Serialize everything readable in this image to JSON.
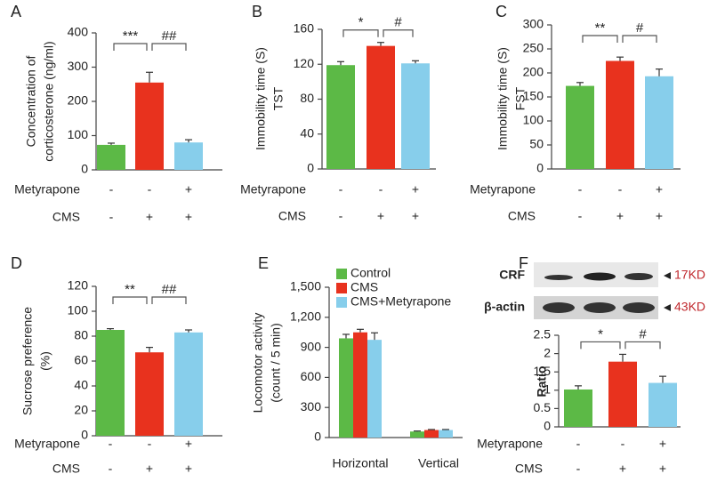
{
  "chart_data": [
    {
      "type": "bar",
      "panel": "A",
      "ylabel": [
        "Concentration of",
        "corticosterone (ng/ml)"
      ],
      "values": [
        73,
        255,
        80
      ],
      "errors": [
        5,
        30,
        8
      ],
      "colors": [
        "#5cb946",
        "#e8321e",
        "#87ceeb"
      ],
      "ylim": [
        0,
        400
      ],
      "yticks": [
        0,
        100,
        200,
        300,
        400
      ],
      "significance": [
        "***",
        "##"
      ],
      "treatments": [
        {
          "name": "Metyrapone",
          "signs": [
            "-",
            "-",
            "+"
          ]
        },
        {
          "name": "CMS",
          "signs": [
            "-",
            "+",
            "+"
          ]
        }
      ]
    },
    {
      "type": "bar",
      "panel": "B",
      "ylabel": [
        "Immobility time (S)",
        "TST"
      ],
      "values": [
        119,
        141,
        121
      ],
      "errors": [
        4,
        4,
        3
      ],
      "colors": [
        "#5cb946",
        "#e8321e",
        "#87ceeb"
      ],
      "ylim": [
        0,
        160
      ],
      "yticks": [
        0,
        40,
        80,
        120,
        160
      ],
      "significance": [
        "*",
        "#"
      ],
      "treatments": [
        {
          "name": "Metyrapone",
          "signs": [
            "-",
            "-",
            "+"
          ]
        },
        {
          "name": "CMS",
          "signs": [
            "-",
            "+",
            "+"
          ]
        }
      ]
    },
    {
      "type": "bar",
      "panel": "C",
      "ylabel": [
        "Immobility time (S)",
        "FST"
      ],
      "values": [
        173,
        225,
        193
      ],
      "errors": [
        7,
        8,
        15
      ],
      "colors": [
        "#5cb946",
        "#e8321e",
        "#87ceeb"
      ],
      "ylim": [
        0,
        300
      ],
      "yticks": [
        0,
        50,
        100,
        150,
        200,
        250,
        300
      ],
      "significance": [
        "**",
        "#"
      ],
      "treatments": [
        {
          "name": "Metyrapone",
          "signs": [
            "-",
            "-",
            "+"
          ]
        },
        {
          "name": "CMS",
          "signs": [
            "-",
            "+",
            "+"
          ]
        }
      ]
    },
    {
      "type": "bar",
      "panel": "D",
      "ylabel": [
        "Sucrose preference",
        "(%)"
      ],
      "values": [
        85,
        67,
        83
      ],
      "errors": [
        1,
        4,
        2
      ],
      "colors": [
        "#5cb946",
        "#e8321e",
        "#87ceeb"
      ],
      "ylim": [
        0,
        120
      ],
      "yticks": [
        0,
        20,
        40,
        60,
        80,
        100,
        120
      ],
      "significance": [
        "**",
        "##"
      ],
      "treatments": [
        {
          "name": "Metyrapone",
          "signs": [
            "-",
            "-",
            "+"
          ]
        },
        {
          "name": "CMS",
          "signs": [
            "-",
            "+",
            "+"
          ]
        }
      ]
    },
    {
      "type": "grouped_bar",
      "panel": "E",
      "ylabel": [
        "Locomotor activity",
        "(count / 5 min)"
      ],
      "categories": [
        "Horizontal",
        "Vertical"
      ],
      "series": [
        {
          "name": "Control",
          "color": "#5cb946",
          "values": [
            990,
            60
          ],
          "errors": [
            40,
            5
          ]
        },
        {
          "name": "CMS",
          "color": "#e8321e",
          "values": [
            1050,
            75
          ],
          "errors": [
            30,
            5
          ]
        },
        {
          "name": "CMS+Metyrapone",
          "color": "#87ceeb",
          "values": [
            975,
            75
          ],
          "errors": [
            70,
            5
          ]
        }
      ],
      "ylim": [
        0,
        1500
      ],
      "yticks": [
        0,
        300,
        600,
        900,
        {
          "value": 1200,
          "label": "1,200"
        },
        {
          "value": 1500,
          "label": "1,500"
        }
      ],
      "legend": "upper left"
    },
    {
      "type": "bar",
      "panel": "F",
      "ylabel": [
        "Ratio"
      ],
      "blot": [
        {
          "label": "CRF",
          "size": "17KD"
        },
        {
          "label": "β-actin",
          "size": "43KD"
        }
      ],
      "values": [
        1.02,
        1.78,
        1.2
      ],
      "errors": [
        0.1,
        0.2,
        0.18
      ],
      "colors": [
        "#5cb946",
        "#e8321e",
        "#87ceeb"
      ],
      "ylim": [
        0,
        2.5
      ],
      "yticks": [
        0,
        0.5,
        1,
        1.5,
        2,
        2.5
      ],
      "significance": [
        "*",
        "#"
      ],
      "treatments": [
        {
          "name": "Metyrapone",
          "signs": [
            "-",
            "-",
            "+"
          ]
        },
        {
          "name": "CMS",
          "signs": [
            "-",
            "+",
            "+"
          ]
        }
      ]
    }
  ]
}
